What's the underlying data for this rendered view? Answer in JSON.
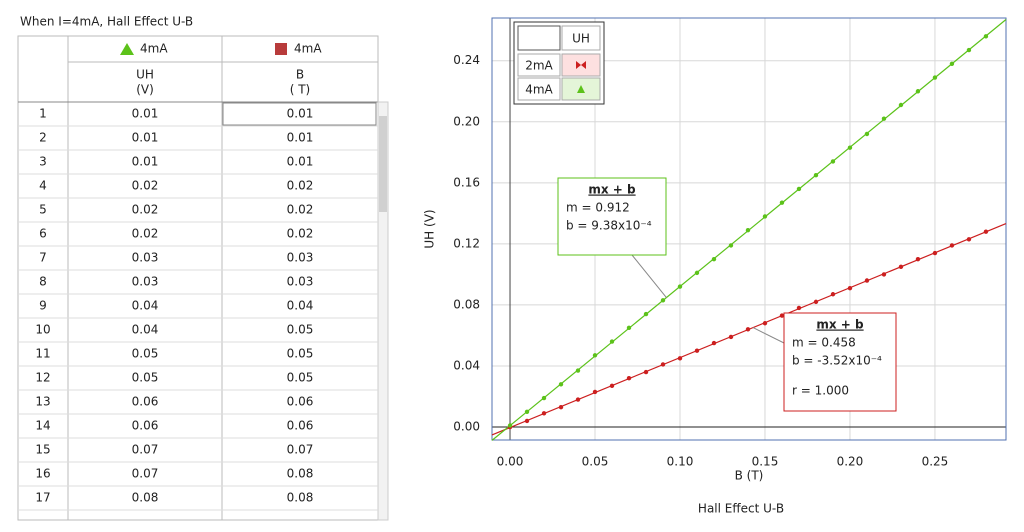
{
  "table": {
    "title": "When I=4mA, Hall Effect U-B",
    "series_headers": [
      "4mA",
      "4mA"
    ],
    "columns": [
      {
        "name": "UH",
        "unit": "(V)"
      },
      {
        "name": "B",
        "unit": "( T)"
      }
    ],
    "rows": [
      [
        "1",
        "0.01",
        "0.01"
      ],
      [
        "2",
        "0.01",
        "0.01"
      ],
      [
        "3",
        "0.01",
        "0.01"
      ],
      [
        "4",
        "0.02",
        "0.02"
      ],
      [
        "5",
        "0.02",
        "0.02"
      ],
      [
        "6",
        "0.02",
        "0.02"
      ],
      [
        "7",
        "0.03",
        "0.03"
      ],
      [
        "8",
        "0.03",
        "0.03"
      ],
      [
        "9",
        "0.04",
        "0.04"
      ],
      [
        "10",
        "0.04",
        "0.05"
      ],
      [
        "11",
        "0.05",
        "0.05"
      ],
      [
        "12",
        "0.05",
        "0.05"
      ],
      [
        "13",
        "0.06",
        "0.06"
      ],
      [
        "14",
        "0.06",
        "0.06"
      ],
      [
        "15",
        "0.07",
        "0.07"
      ],
      [
        "16",
        "0.07",
        "0.08"
      ],
      [
        "17",
        "0.08",
        "0.08"
      ]
    ]
  },
  "chart_data": {
    "type": "scatter",
    "title": "Hall Effect U-B",
    "x_label": "B  (T)",
    "y_label": "UH (V)",
    "xlim": [
      -0.0106,
      0.2918
    ],
    "ylim": [
      -0.0085,
      0.268
    ],
    "xticks": [
      {
        "value": 0,
        "label": "0.00"
      },
      0.05,
      {
        "value": 0.1,
        "label": "0.10"
      },
      0.15,
      {
        "value": 0.2,
        "label": "0.20"
      },
      0.25
    ],
    "yticks": [
      {
        "value": 0,
        "label": "0.00"
      },
      0.04,
      0.08,
      0.12,
      0.16,
      {
        "value": 0.2,
        "label": "0.20"
      },
      0.24
    ],
    "grid": true,
    "legend_header": "UH",
    "series": [
      {
        "name": "2mA",
        "color": "#cc1f1f",
        "x": [
          0,
          0.01,
          0.02,
          0.03,
          0.04,
          0.05,
          0.06,
          0.07,
          0.08,
          0.09,
          0.1,
          0.11,
          0.12,
          0.13,
          0.14,
          0.15,
          0.16,
          0.17,
          0.18,
          0.19,
          0.2,
          0.21,
          0.22,
          0.23,
          0.24,
          0.25,
          0.26,
          0.27,
          0.28
        ],
        "values": [
          0,
          0.004,
          0.009,
          0.013,
          0.018,
          0.023,
          0.027,
          0.032,
          0.036,
          0.041,
          0.045,
          0.05,
          0.055,
          0.059,
          0.064,
          0.068,
          0.073,
          0.078,
          0.082,
          0.087,
          0.091,
          0.096,
          0.1,
          0.105,
          0.11,
          0.114,
          0.119,
          0.123,
          0.128
        ]
      },
      {
        "name": "4mA",
        "color": "#5cc21a",
        "x": [
          0,
          0.01,
          0.02,
          0.03,
          0.04,
          0.05,
          0.06,
          0.07,
          0.08,
          0.09,
          0.1,
          0.11,
          0.12,
          0.13,
          0.14,
          0.15,
          0.16,
          0.17,
          0.18,
          0.19,
          0.2,
          0.21,
          0.22,
          0.23,
          0.24,
          0.25,
          0.26,
          0.27,
          0.28
        ],
        "values": [
          0.001,
          0.01,
          0.019,
          0.028,
          0.037,
          0.047,
          0.056,
          0.065,
          0.074,
          0.083,
          0.092,
          0.101,
          0.11,
          0.119,
          0.129,
          0.138,
          0.147,
          0.156,
          0.165,
          0.174,
          0.183,
          0.192,
          0.202,
          0.211,
          0.22,
          0.229,
          0.238,
          0.247,
          0.256
        ]
      }
    ],
    "annotations": [
      {
        "title": "mx + b",
        "lines": [
          "m = 0.912",
          "b  = 9.38x10⁻⁴"
        ]
      },
      {
        "title": "mx + b",
        "lines": [
          "m = 0.458",
          "b  = -3.52x10⁻⁴",
          "r = 1.000"
        ]
      }
    ]
  }
}
